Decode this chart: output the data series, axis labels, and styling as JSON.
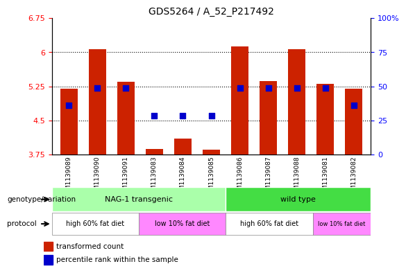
{
  "title": "GDS5264 / A_52_P217492",
  "samples": [
    "GSM1139089",
    "GSM1139090",
    "GSM1139091",
    "GSM1139083",
    "GSM1139084",
    "GSM1139085",
    "GSM1139086",
    "GSM1139087",
    "GSM1139088",
    "GSM1139081",
    "GSM1139082"
  ],
  "red_values": [
    5.2,
    6.07,
    5.35,
    3.87,
    4.1,
    3.85,
    6.13,
    5.36,
    6.07,
    5.3,
    5.2
  ],
  "blue_values": [
    4.83,
    5.22,
    5.22,
    4.6,
    4.6,
    4.6,
    5.22,
    5.22,
    5.22,
    5.22,
    4.83
  ],
  "ylim_left": [
    3.75,
    6.75
  ],
  "ylim_right": [
    0,
    100
  ],
  "yticks_left": [
    3.75,
    4.5,
    5.25,
    6.0,
    6.75
  ],
  "yticks_left_labels": [
    "3.75",
    "4.5",
    "5.25",
    "6",
    "6.75"
  ],
  "yticks_right": [
    0,
    25,
    50,
    75,
    100
  ],
  "yticks_right_labels": [
    "0",
    "25",
    "50",
    "75",
    "100%"
  ],
  "hlines": [
    4.5,
    5.25,
    6.0
  ],
  "bar_color": "#cc2200",
  "dot_color": "#0000cc",
  "bar_width": 0.6,
  "genotype_groups": [
    {
      "label": "NAG-1 transgenic",
      "start": 0,
      "end": 6,
      "color": "#aaffaa"
    },
    {
      "label": "wild type",
      "start": 6,
      "end": 11,
      "color": "#44dd44"
    }
  ],
  "protocol_groups": [
    {
      "label": "high 60% fat diet",
      "start": 0,
      "end": 3,
      "color": "#ffffff"
    },
    {
      "label": "low 10% fat diet",
      "start": 3,
      "end": 6,
      "color": "#ff88ff"
    },
    {
      "label": "high 60% fat diet",
      "start": 6,
      "end": 9,
      "color": "#ffffff"
    },
    {
      "label": "low 10% fat diet",
      "start": 9,
      "end": 11,
      "color": "#ff88ff"
    }
  ],
  "legend_items": [
    {
      "label": "transformed count",
      "color": "#cc2200"
    },
    {
      "label": "percentile rank within the sample",
      "color": "#0000cc"
    }
  ],
  "bg_color": "#ffffff",
  "grid_color": "#aaaaaa",
  "label_left": "genotype/variation",
  "label_protocol": "protocol"
}
